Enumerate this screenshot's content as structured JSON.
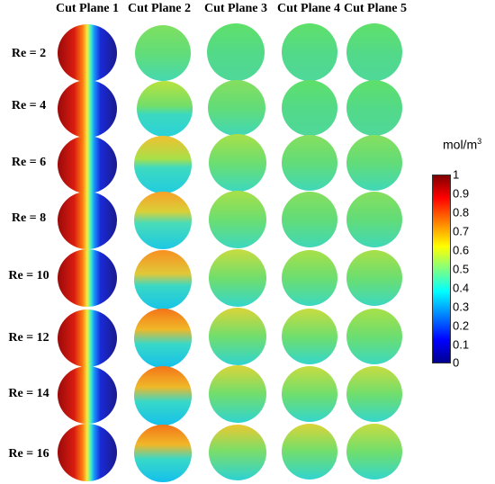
{
  "columns": [
    "Cut Plane 1",
    "Cut Plane 2",
    "Cut Plane 3",
    "Cut Plane 4",
    "Cut Plane 5"
  ],
  "rows": [
    "Re = 2",
    "Re = 4",
    "Re = 6",
    "Re = 8",
    "Re = 10",
    "Re = 12",
    "Re = 14",
    "Re = 16"
  ],
  "colorbar": {
    "unit_base": "mol/m",
    "unit_exp": "3",
    "ticks": [
      "1",
      "0.9",
      "0.8",
      "0.7",
      "0.6",
      "0.5",
      "0.4",
      "0.3",
      "0.2",
      "0.1",
      "0"
    ],
    "colors": [
      "#00008f",
      "#0000ff",
      "#0080ff",
      "#00ffff",
      "#80ff80",
      "#ffff00",
      "#ff8000",
      "#ff0000",
      "#800000"
    ]
  }
}
